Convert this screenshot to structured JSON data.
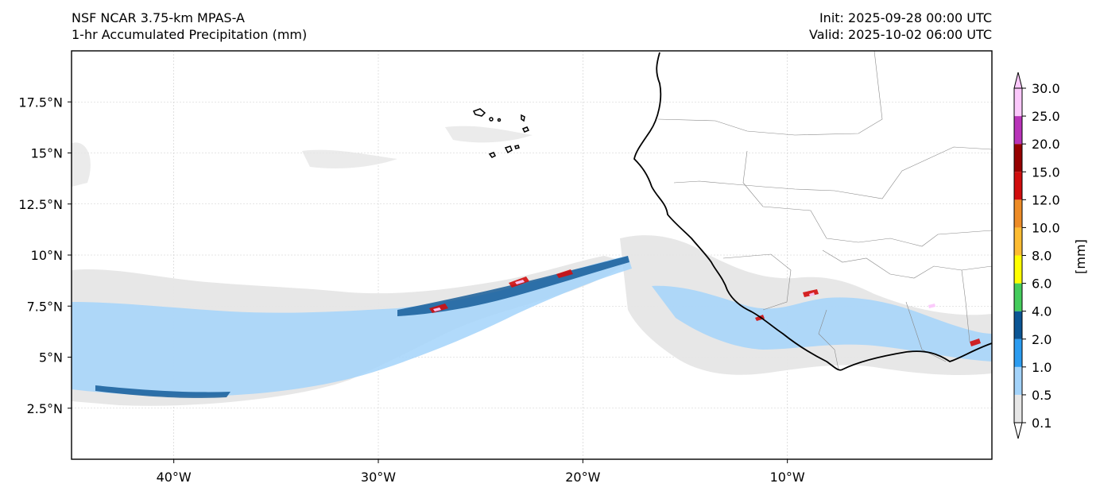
{
  "header": {
    "model": "NSF NCAR 3.75-km MPAS-A",
    "field": "1-hr Accumulated Precipitation (mm)",
    "init": "Init: 2025-09-28 00:00 UTC",
    "valid": "Valid: 2025-10-02 06:00 UTC"
  },
  "map": {
    "lon_range": [
      -45,
      0
    ],
    "lat_range": [
      0,
      20
    ],
    "lon_ticks": [
      {
        "lon": -40,
        "label": "40°W"
      },
      {
        "lon": -30,
        "label": "30°W"
      },
      {
        "lon": -20,
        "label": "20°W"
      },
      {
        "lon": -10,
        "label": "10°W"
      }
    ],
    "lat_ticks": [
      {
        "lat": 17.5,
        "label": "17.5°N"
      },
      {
        "lat": 15,
        "label": "15°N"
      },
      {
        "lat": 12.5,
        "label": "12.5°N"
      },
      {
        "lat": 10,
        "label": "10°N"
      },
      {
        "lat": 7.5,
        "label": "7.5°N"
      },
      {
        "lat": 5,
        "label": "5°N"
      },
      {
        "lat": 2.5,
        "label": "2.5°N"
      }
    ],
    "gridlines": true
  },
  "colorbar": {
    "label": "[mm]",
    "levels": [
      "0.1",
      "0.5",
      "1.0",
      "2.0",
      "4.0",
      "6.0",
      "8.0",
      "10.0",
      "12.0",
      "15.0",
      "20.0",
      "25.0",
      "30.0"
    ],
    "colors": [
      "#e6e6e6",
      "#a3d3fa",
      "#2b9cf0",
      "#0b5594",
      "#44cc5c",
      "#ffff00",
      "#fdbc32",
      "#ed8b26",
      "#d10d0d",
      "#960000",
      "#b833b8",
      "#fbc8fb"
    ],
    "extend": "both"
  }
}
